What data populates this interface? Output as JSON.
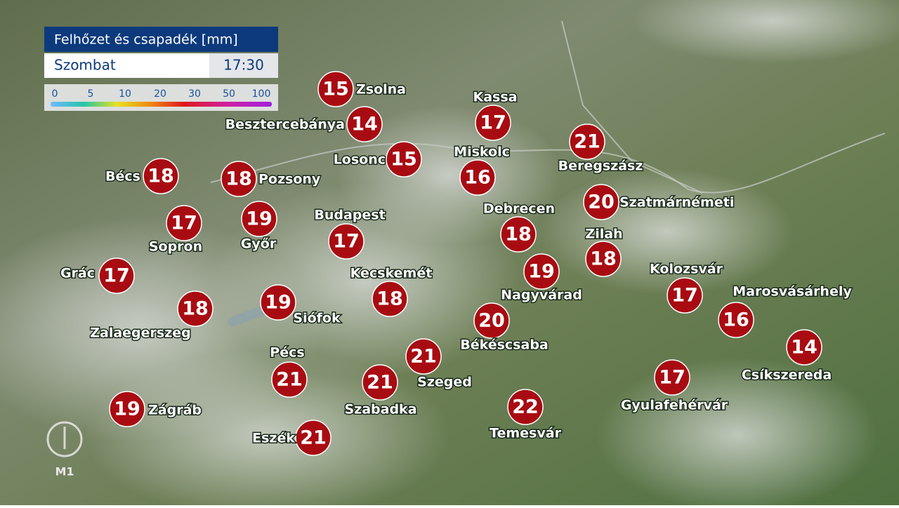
{
  "header": {
    "title": "Felhőzet és csapadék [mm]",
    "day": "Szombat",
    "time": "17:30"
  },
  "legend": {
    "ticks": [
      "0",
      "5",
      "10",
      "20",
      "30",
      "50",
      "100"
    ]
  },
  "logo": "M1",
  "cities": [
    {
      "name": "Zsolna",
      "temp": "15"
    },
    {
      "name": "Besztercebánya",
      "temp": "14"
    },
    {
      "name": "Losonc",
      "temp": "15"
    },
    {
      "name": "Kassa",
      "temp": "17"
    },
    {
      "name": "Miskolc",
      "temp": "16"
    },
    {
      "name": "Beregszász",
      "temp": "21"
    },
    {
      "name": "Bécs",
      "temp": "18"
    },
    {
      "name": "Pozsony",
      "temp": "18"
    },
    {
      "name": "Sopron",
      "temp": "17"
    },
    {
      "name": "Győr",
      "temp": "19"
    },
    {
      "name": "Budapest",
      "temp": "17"
    },
    {
      "name": "Debrecen",
      "temp": "18"
    },
    {
      "name": "Szatmárnémeti",
      "temp": "20"
    },
    {
      "name": "Zilah",
      "temp": "18"
    },
    {
      "name": "Grác",
      "temp": "17"
    },
    {
      "name": "Kecskemét",
      "temp": "18"
    },
    {
      "name": "Nagyvárad",
      "temp": "19"
    },
    {
      "name": "Kolozsvár",
      "temp": "17"
    },
    {
      "name": "Marosvásárhely",
      "temp": "16"
    },
    {
      "name": "Zalaegerszeg",
      "temp": "18"
    },
    {
      "name": "Siófok",
      "temp": "19"
    },
    {
      "name": "Békéscsaba",
      "temp": "20"
    },
    {
      "name": "Csíkszereda",
      "temp": "14"
    },
    {
      "name": "Pécs",
      "temp": "21"
    },
    {
      "name": "Szabadka",
      "temp": "21"
    },
    {
      "name": "Szeged",
      "temp": "21"
    },
    {
      "name": "Gyulafehérvár",
      "temp": "17"
    },
    {
      "name": "Zágráb",
      "temp": "19"
    },
    {
      "name": "Eszék",
      "temp": "21"
    },
    {
      "name": "Temesvár",
      "temp": "22"
    }
  ]
}
